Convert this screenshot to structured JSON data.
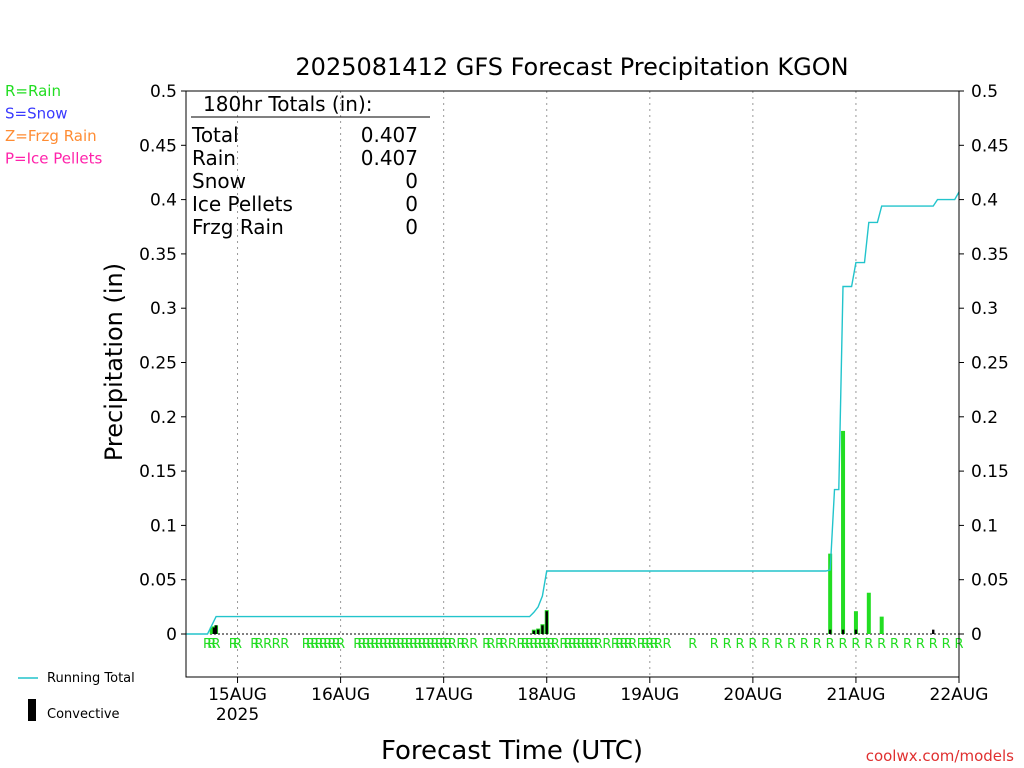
{
  "chart_data": {
    "type": "bar",
    "title": "2025081412 GFS Forecast Precipitation KGON",
    "xlabel": "Forecast Time (UTC)",
    "ylabel": "Precipitation (in)",
    "credit": "coolwx.com/models",
    "ylim": [
      0,
      0.5
    ],
    "yticks": [
      0,
      0.05,
      0.1,
      0.15,
      0.2,
      0.25,
      0.3,
      0.35,
      0.4,
      0.45,
      0.5
    ],
    "ytick_labels": [
      "0",
      "0.05",
      "0.1",
      "0.15",
      "0.2",
      "0.25",
      "0.3",
      "0.35",
      "0.4",
      "0.45",
      "0.5"
    ],
    "x_unit": "forecast hour",
    "xlim": [
      0,
      180
    ],
    "xticks": [
      {
        "hour": 12,
        "label": "15AUG",
        "sublabel": "2025"
      },
      {
        "hour": 36,
        "label": "16AUG",
        "sublabel": ""
      },
      {
        "hour": 60,
        "label": "17AUG",
        "sublabel": ""
      },
      {
        "hour": 84,
        "label": "18AUG",
        "sublabel": ""
      },
      {
        "hour": 108,
        "label": "19AUG",
        "sublabel": ""
      },
      {
        "hour": 132,
        "label": "20AUG",
        "sublabel": ""
      },
      {
        "hour": 156,
        "label": "21AUG",
        "sublabel": ""
      },
      {
        "hour": 180,
        "label": "22AUG",
        "sublabel": ""
      }
    ],
    "grid": "vertical dotted",
    "legend_types": [
      {
        "label": "R=Rain",
        "color": "#22dd22"
      },
      {
        "label": "S=Snow",
        "color": "#3a3aff"
      },
      {
        "label": "Z=Frzg Rain",
        "color": "#ff8c33"
      },
      {
        "label": "P=Ice Pellets",
        "color": "#ff22aa"
      }
    ],
    "legend_series": [
      {
        "label": "Running Total",
        "color": "#22c4cc",
        "kind": "line"
      },
      {
        "label": "Convective",
        "color": "#000000",
        "kind": "bar"
      }
    ],
    "totals_box": {
      "header": "180hr Totals (in):",
      "rows": [
        {
          "label": "Total",
          "value": "0.407"
        },
        {
          "label": "Rain",
          "value": "0.407"
        },
        {
          "label": "Snow",
          "value": "0"
        },
        {
          "label": "Ice Pellets",
          "value": "0"
        },
        {
          "label": "Frzg Rain",
          "value": "0"
        }
      ]
    },
    "series": [
      {
        "name": "Rain",
        "color": "#22dd22",
        "points": [
          {
            "x": 6,
            "y": 0.006
          },
          {
            "x": 6.5,
            "y": 0.007
          },
          {
            "x": 7,
            "y": 0.008
          },
          {
            "x": 81,
            "y": 0.004
          },
          {
            "x": 82,
            "y": 0.005
          },
          {
            "x": 83,
            "y": 0.009
          },
          {
            "x": 84,
            "y": 0.022
          },
          {
            "x": 150,
            "y": 0.074
          },
          {
            "x": 153,
            "y": 0.187
          },
          {
            "x": 156,
            "y": 0.021
          },
          {
            "x": 159,
            "y": 0.038
          },
          {
            "x": 162,
            "y": 0.016
          }
        ]
      },
      {
        "name": "Convective",
        "color": "#000000",
        "points": [
          {
            "x": 6.5,
            "y": 0.006
          },
          {
            "x": 7,
            "y": 0.008
          },
          {
            "x": 81,
            "y": 0.003
          },
          {
            "x": 82,
            "y": 0.004
          },
          {
            "x": 83,
            "y": 0.008
          },
          {
            "x": 84,
            "y": 0.021
          },
          {
            "x": 150,
            "y": 0.004
          },
          {
            "x": 153,
            "y": 0.004
          },
          {
            "x": 156,
            "y": 0.004
          },
          {
            "x": 174,
            "y": 0.004
          }
        ]
      },
      {
        "name": "Running Total",
        "color": "#22c4cc",
        "points": [
          {
            "x": 0,
            "y": 0
          },
          {
            "x": 5,
            "y": 0
          },
          {
            "x": 6,
            "y": 0.008
          },
          {
            "x": 7,
            "y": 0.016
          },
          {
            "x": 80,
            "y": 0.016
          },
          {
            "x": 81,
            "y": 0.02
          },
          {
            "x": 82,
            "y": 0.025
          },
          {
            "x": 83,
            "y": 0.035
          },
          {
            "x": 84,
            "y": 0.058
          },
          {
            "x": 85,
            "y": 0.058
          },
          {
            "x": 149,
            "y": 0.058
          },
          {
            "x": 150,
            "y": 0.059
          },
          {
            "x": 151,
            "y": 0.133
          },
          {
            "x": 152,
            "y": 0.133
          },
          {
            "x": 153,
            "y": 0.32
          },
          {
            "x": 155,
            "y": 0.32
          },
          {
            "x": 156,
            "y": 0.342
          },
          {
            "x": 158,
            "y": 0.342
          },
          {
            "x": 159,
            "y": 0.379
          },
          {
            "x": 161,
            "y": 0.379
          },
          {
            "x": 162,
            "y": 0.394
          },
          {
            "x": 174,
            "y": 0.394
          },
          {
            "x": 175,
            "y": 0.4
          },
          {
            "x": 179,
            "y": 0.4
          },
          {
            "x": 180,
            "y": 0.407
          }
        ]
      }
    ],
    "type_row": {
      "symbol": "R",
      "color": "#22dd22",
      "hours": [
        5,
        6,
        7,
        11,
        12,
        16,
        17,
        19,
        21,
        23,
        28,
        29,
        30,
        31,
        32,
        33,
        34,
        35,
        36,
        40,
        41,
        42,
        43,
        44,
        45,
        46,
        47,
        48,
        49,
        50,
        51,
        52,
        53,
        54,
        55,
        56,
        57,
        58,
        59,
        60,
        61,
        62,
        64,
        65,
        67,
        70,
        71,
        73,
        74,
        76,
        78,
        79,
        80,
        81,
        82,
        83,
        84,
        85,
        86,
        88,
        89,
        90,
        91,
        92,
        93,
        94,
        95,
        96,
        98,
        100,
        101,
        102,
        103,
        104,
        106,
        107,
        108,
        109,
        110,
        112,
        118,
        123,
        126,
        129,
        132,
        135,
        138,
        141,
        144,
        147,
        150,
        153,
        156,
        159,
        162,
        165,
        168,
        171,
        174,
        177,
        180
      ]
    }
  }
}
